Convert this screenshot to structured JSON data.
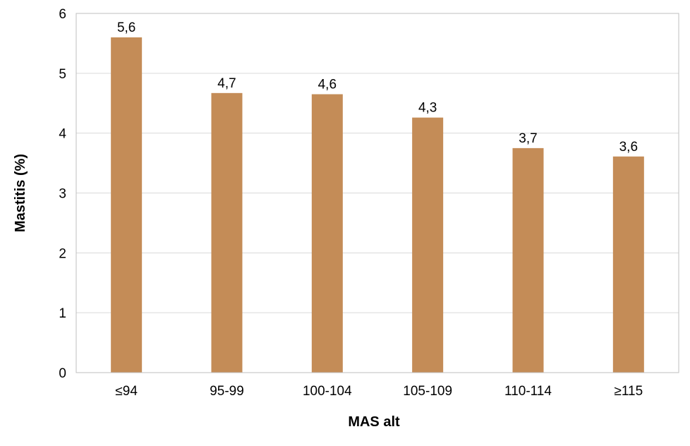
{
  "chart_data": {
    "type": "bar",
    "title": "",
    "xlabel": "MAS alt",
    "ylabel": "Mastitis (%)",
    "categories": [
      "≤94",
      "95-99",
      "100-104",
      "105-109",
      "110-114",
      "≥115"
    ],
    "values": [
      5.6,
      4.67,
      4.65,
      4.26,
      3.75,
      3.61
    ],
    "data_labels": [
      "5,6",
      "4,7",
      "4,6",
      "4,3",
      "3,7",
      "3,6"
    ],
    "yticks": [
      "0",
      "1",
      "2",
      "3",
      "4",
      "5",
      "6"
    ],
    "ylim": [
      0,
      6
    ],
    "grid": true,
    "legend": "none",
    "colors": {
      "bar": "#C48C57",
      "grid": "#D9D9D9",
      "axis": "#BFBFBF"
    }
  }
}
